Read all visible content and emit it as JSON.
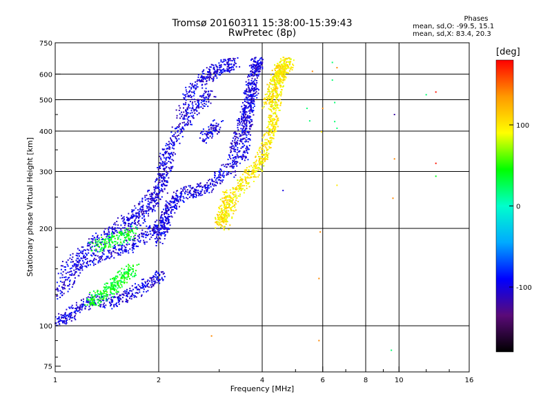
{
  "chart_data": {
    "type": "scatter",
    "title": "Tromsø 20160311 15:38:00-15:39:43",
    "subtitle": "RwPretec (8p)",
    "xlabel": "Frequency [MHz]",
    "ylabel": "Stationary phase Virtual Height [km]",
    "x_scale": "log",
    "y_scale": "log",
    "xlim": [
      1,
      16
    ],
    "ylim": [
      72,
      750
    ],
    "x_ticks": [
      1,
      2,
      4,
      6,
      8,
      10,
      16
    ],
    "y_ticks": [
      75,
      100,
      200,
      300,
      400,
      500,
      600,
      750
    ],
    "grid": true,
    "stats": {
      "title": "Phases",
      "line_o": "mean, sd,O:  -99.5, 15.1",
      "line_x": "mean, sd,X:  83.4, 20.3"
    },
    "colorbar": {
      "label": "[deg]",
      "range": [
        -180,
        180
      ],
      "ticks": [
        100,
        0,
        -100
      ],
      "colormap": [
        "#000000",
        "#5a0a78",
        "#0000ff",
        "#00aaff",
        "#00ffcc",
        "#00ff00",
        "#ffff00",
        "#ff9900",
        "#ff0000"
      ]
    },
    "series": [
      {
        "note_phase": -100,
        "traces": [
          {
            "x": [
              1.0,
              1.06,
              1.12,
              1.2,
              1.3,
              1.42,
              1.55,
              1.68,
              1.8,
              1.95,
              2.05
            ],
            "y": [
              102,
              105,
              110,
              116,
              120,
              118,
              122,
              126,
              132,
              138,
              145
            ]
          },
          {
            "x": [
              1.0,
              1.08,
              1.15,
              1.25,
              1.35,
              1.5,
              1.62,
              1.75,
              1.9,
              2.0,
              2.1
            ],
            "y": [
              125,
              135,
              150,
              160,
              165,
              170,
              175,
              185,
              195,
              200,
              210
            ]
          },
          {
            "x": [
              1.05,
              1.15,
              1.28,
              1.4,
              1.55,
              1.7,
              1.85,
              1.97,
              2.05,
              2.1
            ],
            "y": [
              145,
              165,
              180,
              190,
              205,
              220,
              240,
              260,
              300,
              360
            ]
          },
          {
            "x": [
              2.0,
              2.05,
              2.1,
              2.15,
              2.2,
              2.3,
              2.45,
              2.6,
              2.8,
              3.0,
              3.2
            ],
            "y": [
              185,
              200,
              215,
              230,
              240,
              250,
              260,
              262,
              270,
              285,
              310
            ]
          },
          {
            "x": [
              2.05,
              2.1,
              2.15,
              2.25,
              2.4,
              2.55,
              2.7,
              2.85
            ],
            "y": [
              260,
              300,
              340,
              390,
              430,
              470,
              500,
              520
            ]
          },
          {
            "x": [
              2.3,
              2.45,
              2.6,
              2.75,
              2.9,
              3.05,
              3.2,
              3.35
            ],
            "y": [
              450,
              520,
              560,
              590,
              610,
              630,
              640,
              645
            ]
          },
          {
            "x": [
              3.25,
              3.3,
              3.4,
              3.5,
              3.6,
              3.65,
              3.7,
              3.75,
              3.8,
              3.85,
              3.9
            ],
            "y": [
              300,
              340,
              380,
              420,
              460,
              500,
              540,
              580,
              620,
              640,
              650
            ]
          },
          {
            "x": [
              3.5,
              3.55,
              3.6,
              3.65,
              3.7,
              3.8
            ],
            "y": [
              320,
              360,
              400,
              450,
              500,
              560
            ]
          },
          {
            "x": [
              2.7,
              2.85,
              3.0
            ],
            "y": [
              380,
              400,
              420
            ]
          },
          {
            "x": [
              1.6,
              1.75,
              1.9,
              2.0
            ],
            "y": [
              200,
              215,
              235,
              250
            ]
          }
        ]
      },
      {
        "note_phase": 100,
        "traces": [
          {
            "x": [
              3.1,
              3.2,
              3.35,
              3.5,
              3.65,
              3.8,
              3.95,
              4.05,
              4.15,
              4.25,
              4.3,
              4.35,
              4.4,
              4.45,
              4.5,
              4.55,
              4.6,
              4.7,
              4.8
            ],
            "y": [
              205,
              225,
              255,
              275,
              290,
              300,
              320,
              340,
              370,
              400,
              430,
              460,
              500,
              540,
              580,
              610,
              630,
              650,
              640
            ]
          },
          {
            "x": [
              3.0,
              3.05,
              3.1,
              3.15,
              3.2
            ],
            "y": [
              205,
              215,
              230,
              245,
              260
            ]
          },
          {
            "x": [
              4.15,
              4.25,
              4.3,
              4.4,
              4.5,
              4.55
            ],
            "y": [
              480,
              520,
              560,
              600,
              620,
              630
            ]
          }
        ]
      },
      {
        "note_phase": 40,
        "traces": [
          {
            "x": [
              1.25,
              1.32,
              1.38,
              1.45,
              1.5,
              1.55,
              1.62,
              1.7
            ],
            "y": [
              118,
              122,
              126,
              130,
              135,
              140,
              145,
              150
            ]
          },
          {
            "x": [
              1.3,
              1.4,
              1.5,
              1.6,
              1.7
            ],
            "y": [
              175,
              180,
              185,
              190,
              195
            ]
          }
        ]
      }
    ],
    "scattered_points": [
      {
        "x": 2.85,
        "y": 93,
        "phase": 140
      },
      {
        "x": 5.85,
        "y": 90,
        "phase": 140
      },
      {
        "x": 5.85,
        "y": 140,
        "phase": 140
      },
      {
        "x": 5.9,
        "y": 195,
        "phase": 140
      },
      {
        "x": 9.5,
        "y": 84,
        "phase": 20
      },
      {
        "x": 9.6,
        "y": 248,
        "phase": 140
      },
      {
        "x": 9.7,
        "y": 328,
        "phase": 140
      },
      {
        "x": 12.8,
        "y": 290,
        "phase": 40
      },
      {
        "x": 12.8,
        "y": 318,
        "phase": 175
      },
      {
        "x": 12.8,
        "y": 528,
        "phase": 175
      },
      {
        "x": 12.0,
        "y": 518,
        "phase": 20
      },
      {
        "x": 9.7,
        "y": 450,
        "phase": -120
      },
      {
        "x": 5.95,
        "y": 398,
        "phase": 100
      },
      {
        "x": 6.5,
        "y": 428,
        "phase": 20
      },
      {
        "x": 6.6,
        "y": 408,
        "phase": 20
      },
      {
        "x": 6.5,
        "y": 490,
        "phase": 20
      },
      {
        "x": 6.4,
        "y": 575,
        "phase": 20
      },
      {
        "x": 6.6,
        "y": 628,
        "phase": 140
      },
      {
        "x": 6.4,
        "y": 652,
        "phase": 20
      },
      {
        "x": 5.5,
        "y": 430,
        "phase": 20
      },
      {
        "x": 5.4,
        "y": 470,
        "phase": 20
      },
      {
        "x": 5.6,
        "y": 612,
        "phase": 140
      },
      {
        "x": 6.0,
        "y": 470,
        "phase": 140
      },
      {
        "x": 4.6,
        "y": 262,
        "phase": -100
      },
      {
        "x": 6.6,
        "y": 272,
        "phase": 100
      }
    ]
  }
}
